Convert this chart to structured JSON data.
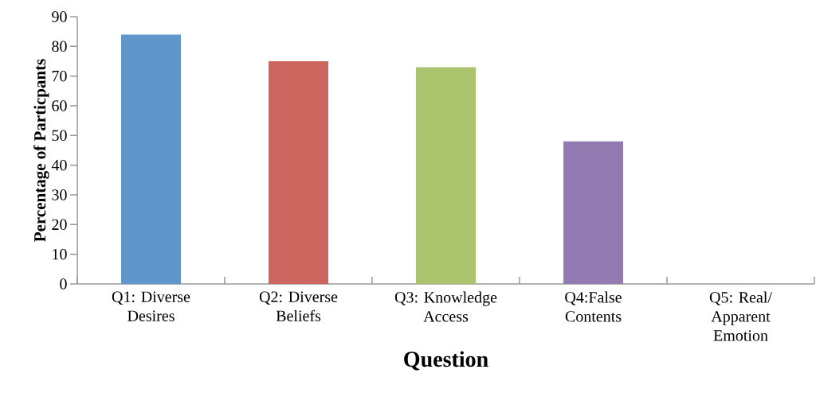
{
  "chart_data": {
    "type": "bar",
    "xlabel": "Question",
    "ylabel": "Percentage of Particpants",
    "categories": [
      "Q1: Diverse Desires",
      "Q2: Diverse Beliefs",
      "Q3: Knowledge Access",
      "Q4:False Contents",
      "Q5: Real/ Apparent Emotion"
    ],
    "values": [
      84,
      75,
      73,
      48,
      0
    ],
    "colors": [
      "#6096c9",
      "#cc665f",
      "#a9c46c",
      "#937bb2",
      "#4bacc6"
    ],
    "ylim": [
      0,
      90
    ],
    "yticks": [
      0,
      10,
      20,
      30,
      40,
      50,
      60,
      70,
      80,
      90
    ],
    "grid": false
  }
}
